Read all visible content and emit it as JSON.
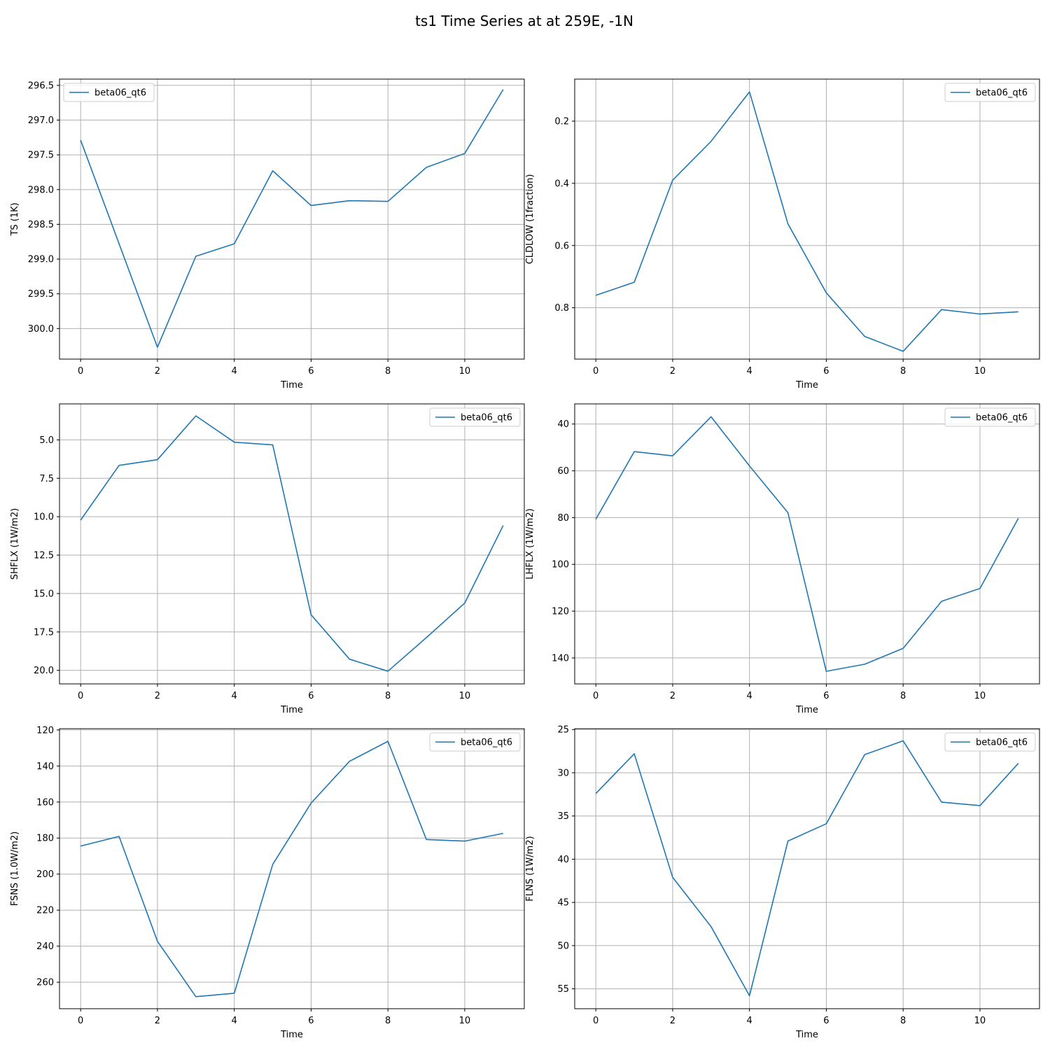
{
  "figure": {
    "title": "ts1 Time Series at at 259E, -1N"
  },
  "colors": {
    "line": "#1f77b4",
    "grid": "#b0b0b0",
    "legend_border": "#cccccc"
  },
  "chart_data": [
    {
      "type": "line",
      "xlabel": "Time",
      "ylabel": "TS (1K)",
      "y_inverted": true,
      "grid": true,
      "legend_position": "upper-left",
      "xlim": [
        -0.55,
        11.55
      ],
      "ylim": [
        300.44,
        296.41
      ],
      "x_ticks": [
        0,
        2,
        4,
        6,
        8,
        10
      ],
      "y_ticks": [
        296.5,
        297.0,
        297.5,
        298.0,
        298.5,
        299.0,
        299.5,
        300.0
      ],
      "y_tick_labels": [
        "296.5",
        "297.0",
        "297.5",
        "298.0",
        "298.5",
        "299.0",
        "299.5",
        "300.0"
      ],
      "series": [
        {
          "name": "beta06_qt6",
          "x": [
            0,
            1,
            2,
            3,
            4,
            5,
            6,
            7,
            8,
            9,
            10,
            11
          ],
          "y": [
            297.29,
            298.78,
            300.27,
            298.96,
            298.78,
            297.73,
            298.23,
            298.16,
            298.17,
            297.68,
            297.48,
            296.56
          ]
        }
      ]
    },
    {
      "type": "line",
      "xlabel": "Time",
      "ylabel": "CLDLOW (1fraction)",
      "y_inverted": true,
      "grid": true,
      "legend_position": "upper-right",
      "xlim": [
        -0.55,
        11.55
      ],
      "ylim": [
        0.965,
        0.065
      ],
      "x_ticks": [
        0,
        2,
        4,
        6,
        8,
        10
      ],
      "y_ticks": [
        0.2,
        0.4,
        0.6,
        0.8
      ],
      "y_tick_labels": [
        "0.2",
        "0.4",
        "0.6",
        "0.8"
      ],
      "series": [
        {
          "name": "beta06_qt6",
          "x": [
            0,
            1,
            2,
            3,
            4,
            5,
            6,
            7,
            8,
            9,
            10,
            11
          ],
          "y": [
            0.76,
            0.718,
            0.39,
            0.265,
            0.106,
            0.53,
            0.752,
            0.892,
            0.94,
            0.806,
            0.82,
            0.813
          ]
        }
      ]
    },
    {
      "type": "line",
      "xlabel": "Time",
      "ylabel": "SHFLX (1W/m2)",
      "y_inverted": true,
      "grid": true,
      "legend_position": "upper-right",
      "xlim": [
        -0.55,
        11.55
      ],
      "ylim": [
        20.88,
        2.66
      ],
      "x_ticks": [
        0,
        2,
        4,
        6,
        8,
        10
      ],
      "y_ticks": [
        5.0,
        7.5,
        10.0,
        12.5,
        15.0,
        17.5,
        20.0
      ],
      "y_tick_labels": [
        "5.0",
        "7.5",
        "10.0",
        "12.5",
        "15.0",
        "17.5",
        "20.0"
      ],
      "series": [
        {
          "name": "beta06_qt6",
          "x": [
            0,
            1,
            2,
            3,
            4,
            5,
            6,
            7,
            8,
            9,
            10,
            11
          ],
          "y": [
            10.22,
            6.66,
            6.29,
            3.44,
            5.15,
            5.33,
            16.38,
            19.27,
            20.05,
            17.87,
            15.62,
            10.57
          ]
        }
      ]
    },
    {
      "type": "line",
      "xlabel": "Time",
      "ylabel": "LHFLX (1W/m2)",
      "y_inverted": true,
      "grid": true,
      "legend_position": "upper-right",
      "xlim": [
        -0.55,
        11.55
      ],
      "ylim": [
        151.1,
        31.4
      ],
      "x_ticks": [
        0,
        2,
        4,
        6,
        8,
        10
      ],
      "y_ticks": [
        40,
        60,
        80,
        100,
        120,
        140
      ],
      "y_tick_labels": [
        "40",
        "60",
        "80",
        "100",
        "120",
        "140"
      ],
      "series": [
        {
          "name": "beta06_qt6",
          "x": [
            0,
            1,
            2,
            3,
            4,
            5,
            6,
            7,
            8,
            9,
            10,
            11
          ],
          "y": [
            80.7,
            51.8,
            53.6,
            36.9,
            57.9,
            77.9,
            145.7,
            142.7,
            135.9,
            115.8,
            110.3,
            80.3
          ]
        }
      ]
    },
    {
      "type": "line",
      "xlabel": "Time",
      "ylabel": "FSNS (1.0W/m2)",
      "y_inverted": true,
      "grid": true,
      "legend_position": "upper-right",
      "xlim": [
        -0.55,
        11.55
      ],
      "ylim": [
        274.7,
        119.3
      ],
      "x_ticks": [
        0,
        2,
        4,
        6,
        8,
        10
      ],
      "y_ticks": [
        120,
        140,
        160,
        180,
        200,
        220,
        240,
        260
      ],
      "y_tick_labels": [
        "120",
        "140",
        "160",
        "180",
        "200",
        "220",
        "240",
        "260"
      ],
      "series": [
        {
          "name": "beta06_qt6",
          "x": [
            0,
            1,
            2,
            3,
            4,
            5,
            6,
            7,
            8,
            9,
            10,
            11
          ],
          "y": [
            184.4,
            179.1,
            237.3,
            268.0,
            266.1,
            194.6,
            160.6,
            137.4,
            126.3,
            180.8,
            181.7,
            177.4
          ]
        }
      ]
    },
    {
      "type": "line",
      "xlabel": "Time",
      "ylabel": "FLNS (1W/m2)",
      "y_inverted": true,
      "grid": true,
      "legend_position": "upper-right",
      "xlim": [
        -0.55,
        11.55
      ],
      "ylim": [
        57.3,
        24.9
      ],
      "x_ticks": [
        0,
        2,
        4,
        6,
        8,
        10
      ],
      "y_ticks": [
        25,
        30,
        35,
        40,
        45,
        50,
        55
      ],
      "y_tick_labels": [
        "25",
        "30",
        "35",
        "40",
        "45",
        "50",
        "55"
      ],
      "series": [
        {
          "name": "beta06_qt6",
          "x": [
            0,
            1,
            2,
            3,
            4,
            5,
            6,
            7,
            8,
            9,
            10,
            11
          ],
          "y": [
            32.4,
            27.8,
            42.1,
            47.8,
            55.8,
            37.9,
            35.9,
            27.9,
            26.3,
            33.4,
            33.8,
            28.9
          ]
        }
      ]
    }
  ]
}
